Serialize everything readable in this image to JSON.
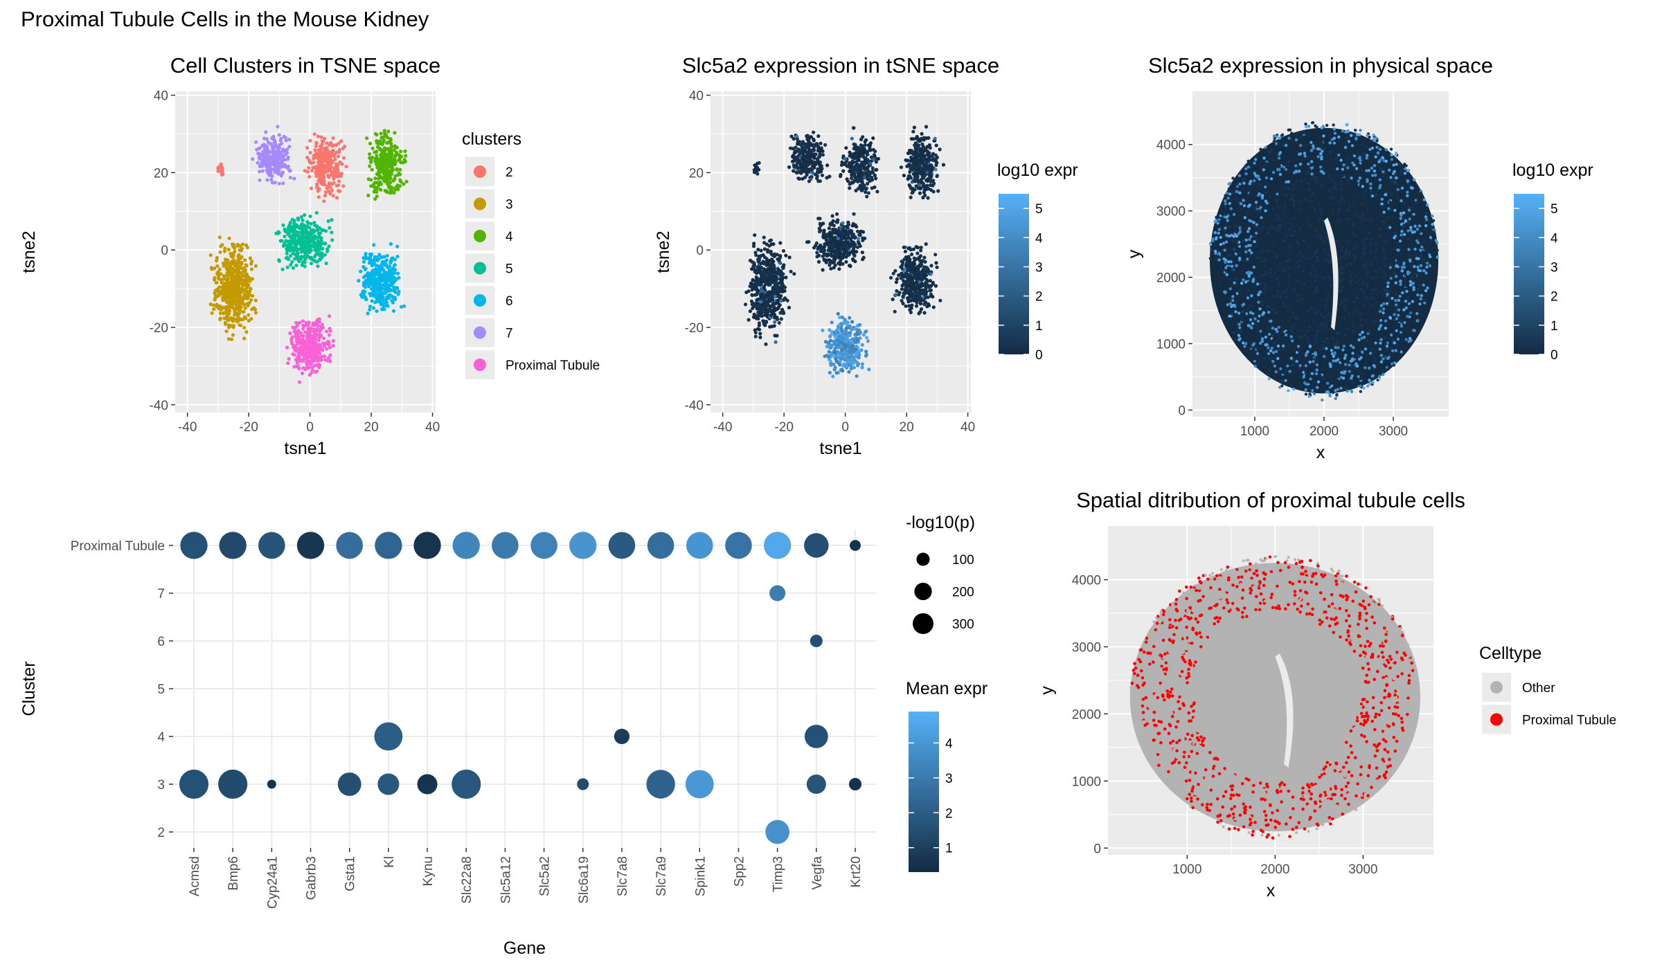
{
  "figure_title": "Proximal Tubule Cells in the Mouse Kidney",
  "colors": {
    "panel_bg": "#ebebeb",
    "grid": "#ffffff",
    "expr_low": "#132b43",
    "expr_high": "#56b1f7",
    "pt_red": "#ff0000",
    "other_grey": "#b3b3b3"
  },
  "chart_data": [
    {
      "id": "clusters_tsne",
      "type": "scatter",
      "title": "Cell Clusters in TSNE space",
      "xlabel": "tsne1",
      "ylabel": "tsne2",
      "xlim": [
        -44,
        41
      ],
      "ylim": [
        -42,
        41
      ],
      "xticks": [
        -40,
        -20,
        0,
        20,
        40
      ],
      "yticks": [
        -40,
        -20,
        0,
        20,
        40
      ],
      "legend": {
        "title": "clusters",
        "position": "right",
        "entries": [
          {
            "label": "2",
            "color": "#f8766d"
          },
          {
            "label": "3",
            "color": "#c49a00"
          },
          {
            "label": "4",
            "color": "#53b400"
          },
          {
            "label": "5",
            "color": "#00c094"
          },
          {
            "label": "6",
            "color": "#00b6eb"
          },
          {
            "label": "7",
            "color": "#a58aff"
          },
          {
            "label": "Proximal Tubule",
            "color": "#fb61d7"
          }
        ]
      },
      "cluster_regions": [
        {
          "cluster": "2",
          "color": "#f8766d",
          "center": [
            5,
            22
          ],
          "spread": [
            7,
            9
          ]
        },
        {
          "cluster": "2",
          "color": "#f8766d",
          "center": [
            -29,
            21
          ],
          "spread": [
            1.5,
            2
          ]
        },
        {
          "cluster": "3",
          "color": "#c49a00",
          "center": [
            -25,
            -10
          ],
          "spread": [
            8,
            14
          ]
        },
        {
          "cluster": "4",
          "color": "#53b400",
          "center": [
            25,
            22
          ],
          "spread": [
            7,
            10
          ]
        },
        {
          "cluster": "5",
          "color": "#00c094",
          "center": [
            -2,
            2
          ],
          "spread": [
            10,
            8
          ]
        },
        {
          "cluster": "6",
          "color": "#00b6eb",
          "center": [
            23,
            -8
          ],
          "spread": [
            8,
            10
          ]
        },
        {
          "cluster": "7",
          "color": "#a58aff",
          "center": [
            -12,
            24
          ],
          "spread": [
            7,
            8
          ]
        },
        {
          "cluster": "Proximal Tubule",
          "color": "#fb61d7",
          "center": [
            0,
            -25
          ],
          "spread": [
            8,
            9
          ]
        }
      ]
    },
    {
      "id": "slc5a2_tsne",
      "type": "scatter",
      "title": "Slc5a2 expression in tSNE space",
      "xlabel": "tsne1",
      "ylabel": "tsne2",
      "xlim": [
        -44,
        41
      ],
      "ylim": [
        -42,
        41
      ],
      "xticks": [
        -40,
        -20,
        0,
        20,
        40
      ],
      "yticks": [
        -40,
        -20,
        0,
        20,
        40
      ],
      "legend": {
        "title": "log10 expr",
        "position": "right",
        "range": [
          0,
          5.5
        ],
        "ticks": [
          0,
          1,
          2,
          3,
          4,
          5
        ]
      },
      "note": "High expression (about 4-5) concentrated in the Proximal Tubule cluster region near tsne1 0, tsne2 -25; other cells near 0."
    },
    {
      "id": "slc5a2_physical",
      "type": "scatter",
      "title": "Slc5a2 expression in physical space",
      "xlabel": "x",
      "ylabel": "y",
      "xlim": [
        100,
        3800
      ],
      "ylim": [
        -100,
        4800
      ],
      "xticks": [
        1000,
        2000,
        3000
      ],
      "yticks": [
        0,
        1000,
        2000,
        3000,
        4000
      ],
      "legend": {
        "title": "log10 expr",
        "position": "right",
        "range": [
          0,
          5.5
        ],
        "ticks": [
          0,
          1,
          2,
          3,
          4,
          5
        ]
      },
      "tissue_center": [
        2000,
        2250
      ],
      "note": "Expressing cells located in the outer cortex ring of the kidney section."
    },
    {
      "id": "dotplot",
      "type": "dot",
      "xlabel": "Gene",
      "ylabel": "Cluster",
      "genes": [
        "Acmsd",
        "Bmp6",
        "Cyp24a1",
        "Gabrb3",
        "Gsta1",
        "Kl",
        "Kynu",
        "Slc22a8",
        "Slc5a12",
        "Slc5a2",
        "Slc6a19",
        "Slc7a8",
        "Slc7a9",
        "Spink1",
        "Spp2",
        "Timp3",
        "Vegfa",
        "Krt20"
      ],
      "clusters": [
        "2",
        "3",
        "4",
        "5",
        "6",
        "7",
        "Proximal Tubule"
      ],
      "size_legend": {
        "title": "-log10(p)",
        "values": [
          100,
          200,
          300
        ]
      },
      "color_legend": {
        "title": "Mean expr",
        "range": [
          0.3,
          4.9
        ],
        "ticks": [
          1,
          2,
          3,
          4
        ]
      },
      "points": [
        {
          "gene": "Acmsd",
          "cluster": "Proximal Tubule",
          "nlogp": 230,
          "expr": 1.6
        },
        {
          "gene": "Bmp6",
          "cluster": "Proximal Tubule",
          "nlogp": 230,
          "expr": 1.3
        },
        {
          "gene": "Cyp24a1",
          "cluster": "Proximal Tubule",
          "nlogp": 220,
          "expr": 1.7
        },
        {
          "gene": "Gabrb3",
          "cluster": "Proximal Tubule",
          "nlogp": 230,
          "expr": 0.7
        },
        {
          "gene": "Gsta1",
          "cluster": "Proximal Tubule",
          "nlogp": 220,
          "expr": 2.6
        },
        {
          "gene": "Kl",
          "cluster": "Proximal Tubule",
          "nlogp": 230,
          "expr": 2.3
        },
        {
          "gene": "Kynu",
          "cluster": "Proximal Tubule",
          "nlogp": 230,
          "expr": 0.6
        },
        {
          "gene": "Slc22a8",
          "cluster": "Proximal Tubule",
          "nlogp": 230,
          "expr": 3.4
        },
        {
          "gene": "Slc5a12",
          "cluster": "Proximal Tubule",
          "nlogp": 220,
          "expr": 3.0
        },
        {
          "gene": "Slc5a2",
          "cluster": "Proximal Tubule",
          "nlogp": 220,
          "expr": 3.3
        },
        {
          "gene": "Slc6a19",
          "cluster": "Proximal Tubule",
          "nlogp": 230,
          "expr": 3.9
        },
        {
          "gene": "Slc7a8",
          "cluster": "Proximal Tubule",
          "nlogp": 220,
          "expr": 1.9
        },
        {
          "gene": "Slc7a9",
          "cluster": "Proximal Tubule",
          "nlogp": 220,
          "expr": 2.6
        },
        {
          "gene": "Spink1",
          "cluster": "Proximal Tubule",
          "nlogp": 220,
          "expr": 3.9
        },
        {
          "gene": "Spp2",
          "cluster": "Proximal Tubule",
          "nlogp": 220,
          "expr": 2.8
        },
        {
          "gene": "Timp3",
          "cluster": "Proximal Tubule",
          "nlogp": 230,
          "expr": 4.6
        },
        {
          "gene": "Vegfa",
          "cluster": "Proximal Tubule",
          "nlogp": 180,
          "expr": 1.5
        },
        {
          "gene": "Krt20",
          "cluster": "Proximal Tubule",
          "nlogp": 20,
          "expr": 0.6
        },
        {
          "gene": "Timp3",
          "cluster": "7",
          "nlogp": 60,
          "expr": 3.1
        },
        {
          "gene": "Vegfa",
          "cluster": "6",
          "nlogp": 30,
          "expr": 1.5
        },
        {
          "gene": "Kl",
          "cluster": "4",
          "nlogp": 250,
          "expr": 2.0
        },
        {
          "gene": "Slc7a8",
          "cluster": "4",
          "nlogp": 55,
          "expr": 0.9
        },
        {
          "gene": "Vegfa",
          "cluster": "4",
          "nlogp": 160,
          "expr": 1.6
        },
        {
          "gene": "Acmsd",
          "cluster": "3",
          "nlogp": 270,
          "expr": 1.6
        },
        {
          "gene": "Bmp6",
          "cluster": "3",
          "nlogp": 270,
          "expr": 1.4
        },
        {
          "gene": "Cyp24a1",
          "cluster": "3",
          "nlogp": 10,
          "expr": 0.6
        },
        {
          "gene": "Gsta1",
          "cluster": "3",
          "nlogp": 160,
          "expr": 1.5
        },
        {
          "gene": "Kl",
          "cluster": "3",
          "nlogp": 130,
          "expr": 1.8
        },
        {
          "gene": "Kynu",
          "cluster": "3",
          "nlogp": 110,
          "expr": 0.6
        },
        {
          "gene": "Slc22a8",
          "cluster": "3",
          "nlogp": 270,
          "expr": 1.8
        },
        {
          "gene": "Slc6a19",
          "cluster": "3",
          "nlogp": 25,
          "expr": 1.4
        },
        {
          "gene": "Slc7a9",
          "cluster": "3",
          "nlogp": 260,
          "expr": 2.2
        },
        {
          "gene": "Spink1",
          "cluster": "3",
          "nlogp": 250,
          "expr": 4.0
        },
        {
          "gene": "Vegfa",
          "cluster": "3",
          "nlogp": 100,
          "expr": 1.7
        },
        {
          "gene": "Krt20",
          "cluster": "3",
          "nlogp": 30,
          "expr": 0.5
        },
        {
          "gene": "Timp3",
          "cluster": "2",
          "nlogp": 170,
          "expr": 3.8
        }
      ]
    },
    {
      "id": "pt_spatial",
      "type": "scatter",
      "title": "Spatial ditribution of proximal tubule cells",
      "xlabel": "x",
      "ylabel": "y",
      "xlim": [
        100,
        3800
      ],
      "ylim": [
        -100,
        4800
      ],
      "xticks": [
        1000,
        2000,
        3000
      ],
      "yticks": [
        0,
        1000,
        2000,
        3000,
        4000
      ],
      "legend": {
        "title": "Celltype",
        "position": "right",
        "entries": [
          {
            "label": "Other",
            "color": "#b3b3b3"
          },
          {
            "label": "Proximal Tubule",
            "color": "#ff0000"
          }
        ]
      }
    }
  ]
}
